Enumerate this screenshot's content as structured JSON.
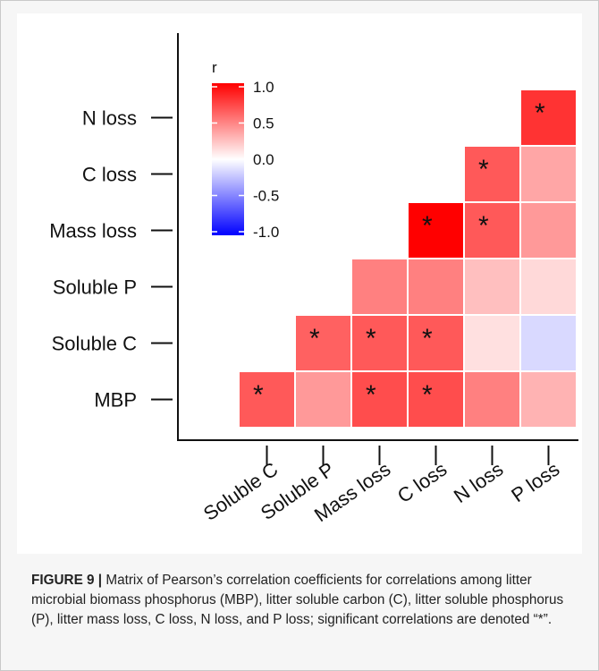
{
  "chart_data": {
    "type": "heatmap",
    "title": "",
    "row_labels": [
      "N loss",
      "C loss",
      "Mass loss",
      "Soluble P",
      "Soluble C",
      "MBP"
    ],
    "col_labels": [
      "Soluble C",
      "Soluble P",
      "Mass loss",
      "C loss",
      "N loss",
      "P loss"
    ],
    "cells": [
      {
        "row": "N loss",
        "col": "P loss",
        "r": 0.8,
        "significant": true
      },
      {
        "row": "C loss",
        "col": "N loss",
        "r": 0.65,
        "significant": true
      },
      {
        "row": "C loss",
        "col": "P loss",
        "r": 0.35,
        "significant": false
      },
      {
        "row": "Mass loss",
        "col": "C loss",
        "r": 1.0,
        "significant": true
      },
      {
        "row": "Mass loss",
        "col": "N loss",
        "r": 0.65,
        "significant": true
      },
      {
        "row": "Mass loss",
        "col": "P loss",
        "r": 0.4,
        "significant": false
      },
      {
        "row": "Soluble P",
        "col": "Mass loss",
        "r": 0.5,
        "significant": false
      },
      {
        "row": "Soluble P",
        "col": "C loss",
        "r": 0.5,
        "significant": false
      },
      {
        "row": "Soluble P",
        "col": "N loss",
        "r": 0.25,
        "significant": false
      },
      {
        "row": "Soluble P",
        "col": "P loss",
        "r": 0.15,
        "significant": false
      },
      {
        "row": "Soluble C",
        "col": "Soluble P",
        "r": 0.62,
        "significant": true
      },
      {
        "row": "Soluble C",
        "col": "Mass loss",
        "r": 0.65,
        "significant": true
      },
      {
        "row": "Soluble C",
        "col": "C loss",
        "r": 0.65,
        "significant": true
      },
      {
        "row": "Soluble C",
        "col": "N loss",
        "r": 0.12,
        "significant": false
      },
      {
        "row": "Soluble C",
        "col": "P loss",
        "r": -0.15,
        "significant": false
      },
      {
        "row": "MBP",
        "col": "Soluble C",
        "r": 0.65,
        "significant": true
      },
      {
        "row": "MBP",
        "col": "Soluble P",
        "r": 0.4,
        "significant": false
      },
      {
        "row": "MBP",
        "col": "Mass loss",
        "r": 0.7,
        "significant": true
      },
      {
        "row": "MBP",
        "col": "C loss",
        "r": 0.7,
        "significant": true
      },
      {
        "row": "MBP",
        "col": "N loss",
        "r": 0.5,
        "significant": false
      },
      {
        "row": "MBP",
        "col": "P loss",
        "r": 0.3,
        "significant": false
      }
    ],
    "legend": {
      "title": "r",
      "ticks": [
        "1.0",
        "0.5",
        "0.0",
        "-0.5",
        "-1.0"
      ],
      "range": [
        -1.0,
        1.0
      ],
      "colors": {
        "low": "#0000ff",
        "mid": "#ffffff",
        "high": "#ff0000"
      },
      "placement": "top-left"
    },
    "significance_marker": "*"
  },
  "caption": {
    "lead": "FIGURE 9 |",
    "text": " Matrix of Pearson’s correlation coefficients for correlations among litter microbial biomass phosphorus (MBP), litter soluble carbon (C), litter soluble phosphorus (P), litter mass loss, C loss, N loss, and P loss; significant correlations are denoted “*”."
  }
}
